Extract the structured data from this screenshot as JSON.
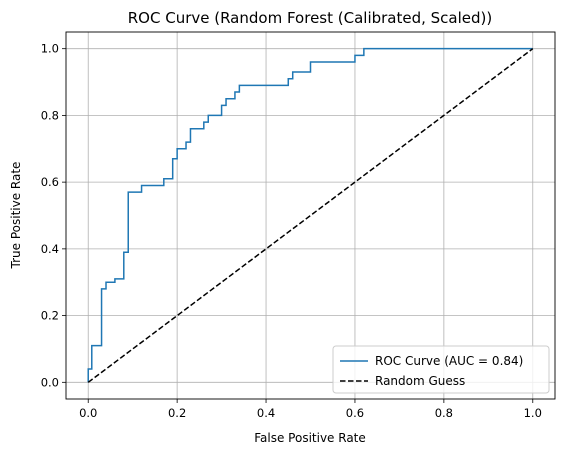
{
  "chart_data": {
    "type": "line",
    "title": "ROC Curve (Random Forest (Calibrated, Scaled))",
    "xlabel": "False Positive Rate",
    "ylabel": "True Positive Rate",
    "xlim": [
      -0.05,
      1.05
    ],
    "ylim": [
      -0.05,
      1.05
    ],
    "x_ticks": [
      "0.0",
      "0.2",
      "0.4",
      "0.6",
      "0.8",
      "1.0"
    ],
    "y_ticks": [
      "0.0",
      "0.2",
      "0.4",
      "0.6",
      "0.8",
      "1.0"
    ],
    "grid": true,
    "legend_position": "lower-right",
    "series": [
      {
        "name": "ROC Curve (AUC = 0.84)",
        "color": "#1f77b4",
        "style": "solid",
        "x": [
          0.0,
          0.0,
          0.008,
          0.008,
          0.03,
          0.03,
          0.04,
          0.04,
          0.06,
          0.06,
          0.08,
          0.08,
          0.09,
          0.09,
          0.12,
          0.12,
          0.17,
          0.17,
          0.19,
          0.19,
          0.2,
          0.2,
          0.22,
          0.22,
          0.23,
          0.23,
          0.26,
          0.26,
          0.27,
          0.27,
          0.3,
          0.3,
          0.31,
          0.31,
          0.33,
          0.33,
          0.34,
          0.34,
          0.45,
          0.45,
          0.46,
          0.46,
          0.5,
          0.5,
          0.6,
          0.6,
          0.62,
          0.62,
          1.0
        ],
        "y": [
          0.0,
          0.04,
          0.04,
          0.11,
          0.11,
          0.28,
          0.28,
          0.3,
          0.3,
          0.31,
          0.31,
          0.39,
          0.39,
          0.57,
          0.57,
          0.59,
          0.59,
          0.61,
          0.61,
          0.67,
          0.67,
          0.7,
          0.7,
          0.72,
          0.72,
          0.76,
          0.76,
          0.78,
          0.78,
          0.8,
          0.8,
          0.83,
          0.83,
          0.85,
          0.85,
          0.87,
          0.87,
          0.89,
          0.89,
          0.91,
          0.91,
          0.93,
          0.93,
          0.96,
          0.96,
          0.98,
          0.98,
          1.0,
          1.0
        ]
      },
      {
        "name": "Random Guess",
        "color": "#000000",
        "style": "dashed",
        "x": [
          0.0,
          1.0
        ],
        "y": [
          0.0,
          1.0
        ]
      }
    ]
  }
}
